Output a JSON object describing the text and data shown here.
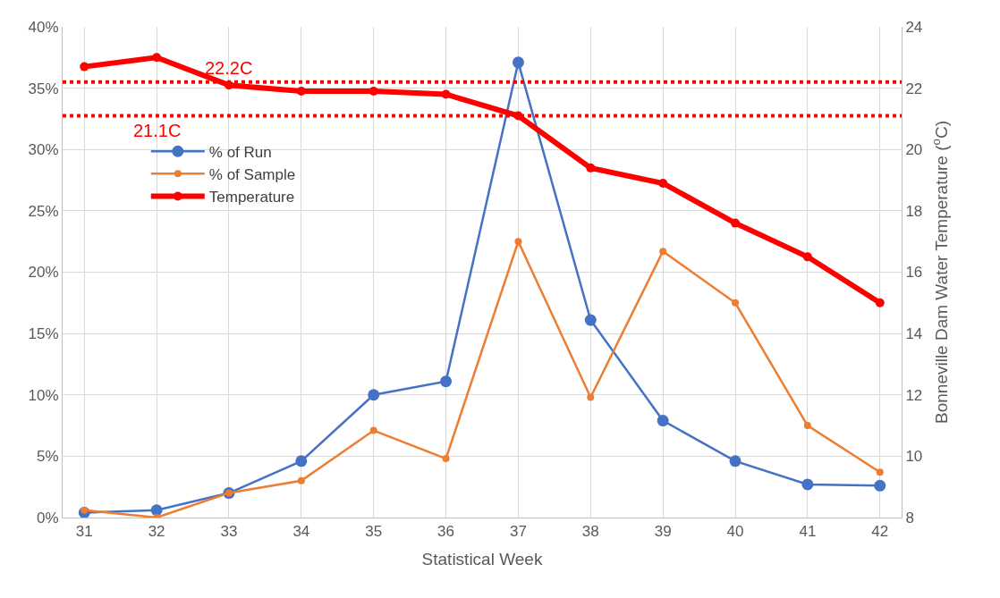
{
  "chart_data": {
    "type": "line",
    "xlabel": "Statistical Week",
    "y2label": "Bonneville Dam Water Temperature ($^{o}$C)",
    "x": [
      31,
      32,
      33,
      34,
      35,
      36,
      37,
      38,
      39,
      40,
      41,
      42
    ],
    "series": [
      {
        "name": "% of Run",
        "color": "#4472c4",
        "values": [
          0.4,
          0.6,
          2.0,
          4.6,
          10.0,
          11.1,
          37.1,
          16.1,
          7.9,
          4.6,
          2.7,
          2.6
        ]
      },
      {
        "name": "% of Sample",
        "color": "#ed7d31",
        "values": [
          0.6,
          0.0,
          2.0,
          3.0,
          7.1,
          4.8,
          22.5,
          9.8,
          21.7,
          17.5,
          7.5,
          3.7
        ]
      },
      {
        "name": "Temperature",
        "color": "#ff0000",
        "axis": "y2",
        "values": [
          22.7,
          23.0,
          22.1,
          21.9,
          21.9,
          21.8,
          21.1,
          19.4,
          18.9,
          17.6,
          16.5,
          15.0
        ]
      }
    ],
    "xlim": [
      30.7,
      42.3
    ],
    "xticks": [
      31,
      32,
      33,
      34,
      35,
      36,
      37,
      38,
      39,
      40,
      41,
      42
    ],
    "ylim": [
      0,
      40
    ],
    "yticks": [
      {
        "value": 0,
        "label": "0%"
      },
      {
        "value": 5,
        "label": "5%"
      },
      {
        "value": 10,
        "label": "10%"
      },
      {
        "value": 15,
        "label": "15%"
      },
      {
        "value": 20,
        "label": "20%"
      },
      {
        "value": 25,
        "label": "25%"
      },
      {
        "value": 30,
        "label": "30%"
      },
      {
        "value": 35,
        "label": "35%"
      },
      {
        "value": 40,
        "label": "40%"
      }
    ],
    "y2lim": [
      8,
      24
    ],
    "y2ticks": [
      8,
      10,
      12,
      14,
      16,
      18,
      20,
      22,
      24
    ],
    "ref_lines": [
      {
        "axis": "y2",
        "value": 22.2,
        "label": "22.2C",
        "color": "#ff0000",
        "line_style": "dotted"
      },
      {
        "axis": "y2",
        "value": 21.1,
        "label": "21.1C",
        "color": "#ff0000",
        "line_style": "dotted"
      }
    ],
    "grid": true,
    "legend": "left",
    "marker": "circle",
    "line_style": "solid"
  }
}
